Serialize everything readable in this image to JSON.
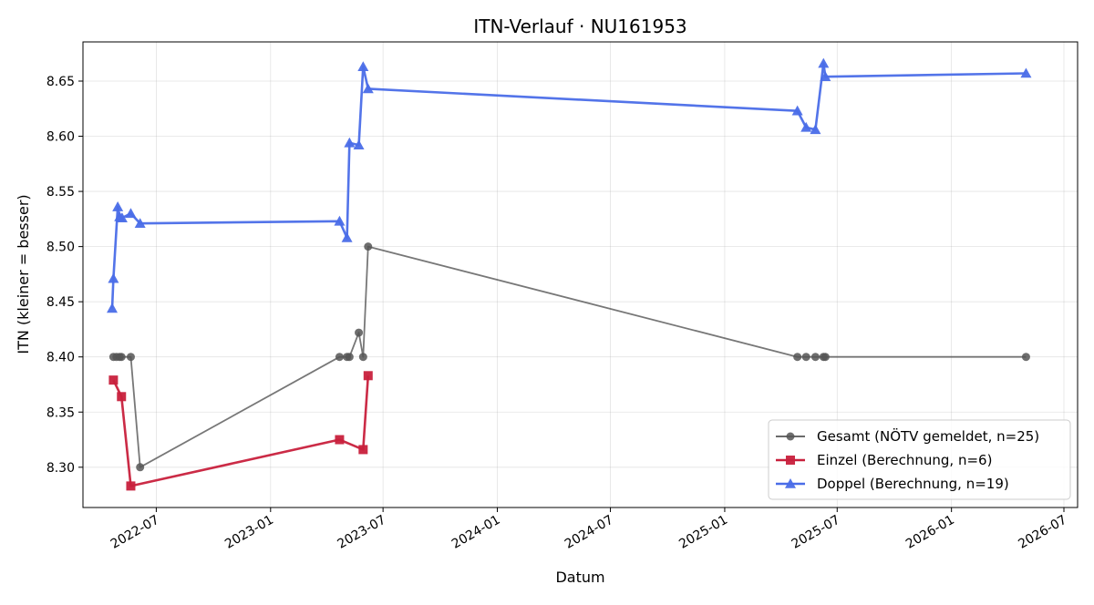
{
  "chart_data": {
    "type": "line",
    "title": "ITN-Verlauf · NU161953",
    "xlabel": "Datum",
    "ylabel": "ITN  (kleiner = besser)",
    "xlim": [
      "2022-03-05",
      "2026-07-23"
    ],
    "ylim": [
      8.2635,
      8.6855
    ],
    "x_ticks": [
      {
        "date": "2022-07-01",
        "label": "2022-07"
      },
      {
        "date": "2023-01-01",
        "label": "2023-01"
      },
      {
        "date": "2023-07-01",
        "label": "2023-07"
      },
      {
        "date": "2024-01-01",
        "label": "2024-01"
      },
      {
        "date": "2024-07-01",
        "label": "2024-07"
      },
      {
        "date": "2025-01-01",
        "label": "2025-01"
      },
      {
        "date": "2025-07-01",
        "label": "2025-07"
      },
      {
        "date": "2026-01-01",
        "label": "2026-01"
      },
      {
        "date": "2026-07-01",
        "label": "2026-07"
      }
    ],
    "y_ticks": [
      "8.30",
      "8.35",
      "8.40",
      "8.45",
      "8.50",
      "8.55",
      "8.60",
      "8.65"
    ],
    "grid": true,
    "legend_position": "lower-right",
    "series": [
      {
        "name": "Gesamt (NÖTV gemeldet, n=25)",
        "color": "#555555",
        "marker": "circle",
        "points": [
          {
            "x": "2022-04-23",
            "y": 8.4
          },
          {
            "x": "2022-04-28",
            "y": 8.4
          },
          {
            "x": "2022-05-03",
            "y": 8.4
          },
          {
            "x": "2022-05-06",
            "y": 8.4
          },
          {
            "x": "2022-05-21",
            "y": 8.4
          },
          {
            "x": "2022-06-05",
            "y": 8.3
          },
          {
            "x": "2023-04-22",
            "y": 8.4
          },
          {
            "x": "2023-05-04",
            "y": 8.4
          },
          {
            "x": "2023-05-08",
            "y": 8.4
          },
          {
            "x": "2023-05-23",
            "y": 8.422
          },
          {
            "x": "2023-05-30",
            "y": 8.4
          },
          {
            "x": "2023-06-07",
            "y": 8.5
          },
          {
            "x": "2025-04-28",
            "y": 8.4
          },
          {
            "x": "2025-05-12",
            "y": 8.4
          },
          {
            "x": "2025-05-27",
            "y": 8.4
          },
          {
            "x": "2025-06-09",
            "y": 8.4
          },
          {
            "x": "2025-06-12",
            "y": 8.4
          },
          {
            "x": "2026-05-01",
            "y": 8.4
          }
        ]
      },
      {
        "name": "Einzel (Berechnung, n=6)",
        "color": "#c8203c",
        "marker": "square",
        "points": [
          {
            "x": "2022-04-23",
            "y": 8.379
          },
          {
            "x": "2022-05-06",
            "y": 8.364
          },
          {
            "x": "2022-05-21",
            "y": 8.283
          },
          {
            "x": "2023-04-22",
            "y": 8.325
          },
          {
            "x": "2023-05-30",
            "y": 8.316
          },
          {
            "x": "2023-06-07",
            "y": 8.383
          }
        ]
      },
      {
        "name": "Doppel (Berechnung, n=19)",
        "color": "#4a6de8",
        "marker": "triangle",
        "points": [
          {
            "x": "2022-04-21",
            "y": 8.444
          },
          {
            "x": "2022-04-23",
            "y": 8.471
          },
          {
            "x": "2022-04-30",
            "y": 8.536
          },
          {
            "x": "2022-05-03",
            "y": 8.527
          },
          {
            "x": "2022-05-07",
            "y": 8.526
          },
          {
            "x": "2022-05-21",
            "y": 8.53
          },
          {
            "x": "2022-06-05",
            "y": 8.521
          },
          {
            "x": "2023-04-22",
            "y": 8.523
          },
          {
            "x": "2023-05-04",
            "y": 8.508
          },
          {
            "x": "2023-05-08",
            "y": 8.594
          },
          {
            "x": "2023-05-23",
            "y": 8.592
          },
          {
            "x": "2023-05-30",
            "y": 8.663
          },
          {
            "x": "2023-06-07",
            "y": 8.643
          },
          {
            "x": "2025-04-28",
            "y": 8.623
          },
          {
            "x": "2025-05-12",
            "y": 8.608
          },
          {
            "x": "2025-05-27",
            "y": 8.606
          },
          {
            "x": "2025-06-09",
            "y": 8.666
          },
          {
            "x": "2025-06-12",
            "y": 8.654
          },
          {
            "x": "2026-05-01",
            "y": 8.657
          }
        ]
      }
    ]
  }
}
